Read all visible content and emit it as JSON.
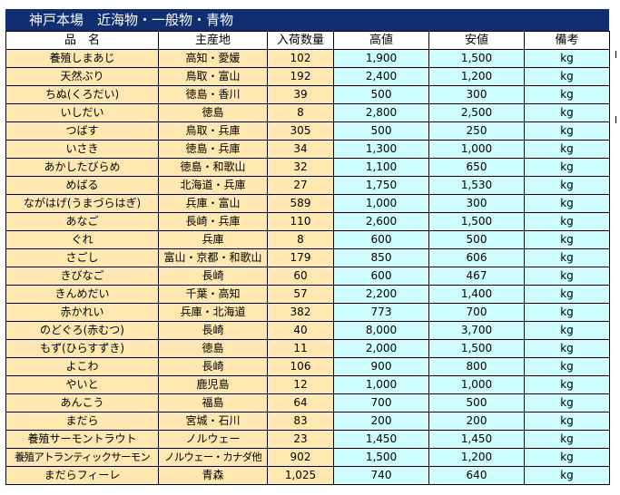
{
  "title": "神戸本場　近海物・一般物・青物",
  "columns": [
    "品　名",
    "主産地",
    "入荷数量",
    "高値",
    "安値",
    "備考"
  ],
  "rows": [
    {
      "name": "養殖しまあじ",
      "origin": "高知・愛媛",
      "qty": "102",
      "high": "1,900",
      "low": "1,500",
      "unit": "kg"
    },
    {
      "name": "天然ぶり",
      "origin": "鳥取・富山",
      "qty": "192",
      "high": "2,400",
      "low": "1,200",
      "unit": "kg"
    },
    {
      "name": "ちぬ(くろだい)",
      "origin": "徳島・香川",
      "qty": "39",
      "high": "500",
      "low": "300",
      "unit": "kg"
    },
    {
      "name": "いしだい",
      "origin": "徳島",
      "qty": "8",
      "high": "2,800",
      "low": "2,500",
      "unit": "kg"
    },
    {
      "name": "つばす",
      "origin": "鳥取・兵庫",
      "qty": "305",
      "high": "500",
      "low": "250",
      "unit": "kg"
    },
    {
      "name": "いさき",
      "origin": "徳島・兵庫",
      "qty": "34",
      "high": "1,300",
      "low": "1,000",
      "unit": "kg"
    },
    {
      "name": "あかしたびらめ",
      "origin": "徳島・和歌山",
      "qty": "32",
      "high": "1,100",
      "low": "650",
      "unit": "kg"
    },
    {
      "name": "めばる",
      "origin": "北海道・兵庫",
      "qty": "27",
      "high": "1,750",
      "low": "1,530",
      "unit": "kg"
    },
    {
      "name": "ながはげ(うまづらはぎ)",
      "origin": "兵庫・富山",
      "qty": "589",
      "high": "1,000",
      "low": "300",
      "unit": "kg"
    },
    {
      "name": "あなご",
      "origin": "長崎・兵庫",
      "qty": "110",
      "high": "2,600",
      "low": "1,500",
      "unit": "kg"
    },
    {
      "name": "ぐれ",
      "origin": "兵庫",
      "qty": "8",
      "high": "600",
      "low": "500",
      "unit": "kg"
    },
    {
      "name": "さごし",
      "origin": "富山・京都・和歌山",
      "qty": "179",
      "high": "850",
      "low": "606",
      "unit": "kg"
    },
    {
      "name": "きびなご",
      "origin": "長崎",
      "qty": "60",
      "high": "600",
      "low": "467",
      "unit": "kg"
    },
    {
      "name": "きんめだい",
      "origin": "千葉・高知",
      "qty": "57",
      "high": "2,200",
      "low": "1,400",
      "unit": "kg"
    },
    {
      "name": "赤かれい",
      "origin": "兵庫・北海道",
      "qty": "382",
      "high": "773",
      "low": "700",
      "unit": "kg"
    },
    {
      "name": "のどぐろ(赤むつ)",
      "origin": "長崎",
      "qty": "40",
      "high": "8,000",
      "low": "3,700",
      "unit": "kg"
    },
    {
      "name": "もず(ひらすずき)",
      "origin": "徳島",
      "qty": "11",
      "high": "2,000",
      "low": "1,500",
      "unit": "kg"
    },
    {
      "name": "よこわ",
      "origin": "長崎",
      "qty": "106",
      "high": "900",
      "low": "800",
      "unit": "kg"
    },
    {
      "name": "やいと",
      "origin": "鹿児島",
      "qty": "12",
      "high": "1,000",
      "low": "1,000",
      "unit": "kg"
    },
    {
      "name": "あんこう",
      "origin": "福島",
      "qty": "64",
      "high": "700",
      "low": "500",
      "unit": "kg"
    },
    {
      "name": "まだら",
      "origin": "宮城・石川",
      "qty": "83",
      "high": "200",
      "low": "200",
      "unit": "kg"
    },
    {
      "name": "養殖サーモントラウト",
      "origin": "ノルウェー",
      "qty": "23",
      "high": "1,450",
      "low": "1,450",
      "unit": "kg"
    },
    {
      "name": "養殖アトランティックサーモン",
      "origin": "ノルウェー・カナダ他",
      "qty": "902",
      "high": "1,500",
      "low": "1,200",
      "unit": "kg"
    },
    {
      "name": "まだらフィーレ",
      "origin": "青森",
      "qty": "1,025",
      "high": "740",
      "low": "640",
      "unit": "kg"
    }
  ]
}
